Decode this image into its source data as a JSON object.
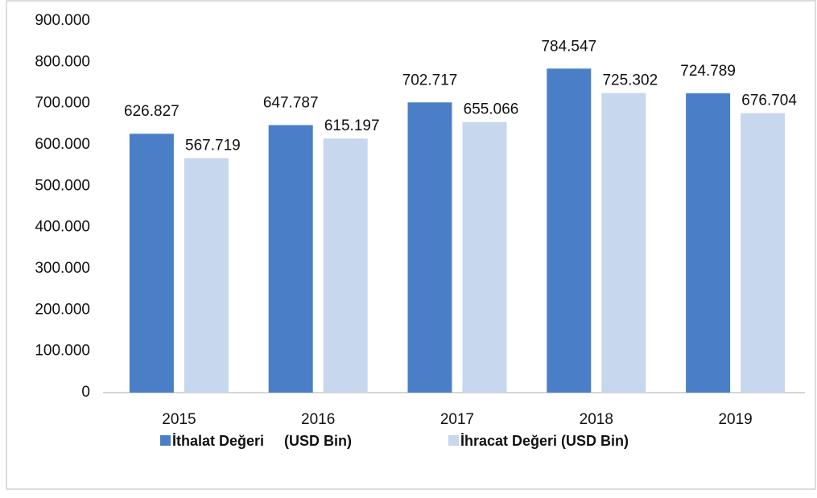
{
  "chart_data": {
    "type": "bar",
    "categories": [
      "2015",
      "2016",
      "2017",
      "2018",
      "2019"
    ],
    "series": [
      {
        "name": "İthalat Değeri     (USD Bin)",
        "color": "#4a7fc8",
        "values": [
          626827,
          647787,
          702717,
          784547,
          724789
        ],
        "value_labels": [
          "626.827",
          "647.787",
          "702.717",
          "784.547",
          "724.789"
        ]
      },
      {
        "name": "İhracat Değeri (USD Bin)",
        "color": "#c6d7ee",
        "values": [
          567719,
          615197,
          655066,
          725302,
          676704
        ],
        "value_labels": [
          "567.719",
          "615.197",
          "655.066",
          "725.302",
          "676.704"
        ]
      }
    ],
    "ylim": [
      0,
      900000
    ],
    "yticks": [
      0,
      {
        "value": 100000,
        "label": "100.000"
      },
      {
        "value": 200000,
        "label": "200.000"
      },
      {
        "value": 300000,
        "label": "300.000"
      },
      {
        "value": 400000,
        "label": "400.000"
      },
      {
        "value": 500000,
        "label": "500.000"
      },
      {
        "value": 600000,
        "label": "600.000"
      },
      {
        "value": 700000,
        "label": "700.000"
      },
      {
        "value": 800000,
        "label": "800.000"
      },
      {
        "value": 900000,
        "label": "900.000"
      }
    ],
    "grid": false,
    "legend": "bottom"
  }
}
